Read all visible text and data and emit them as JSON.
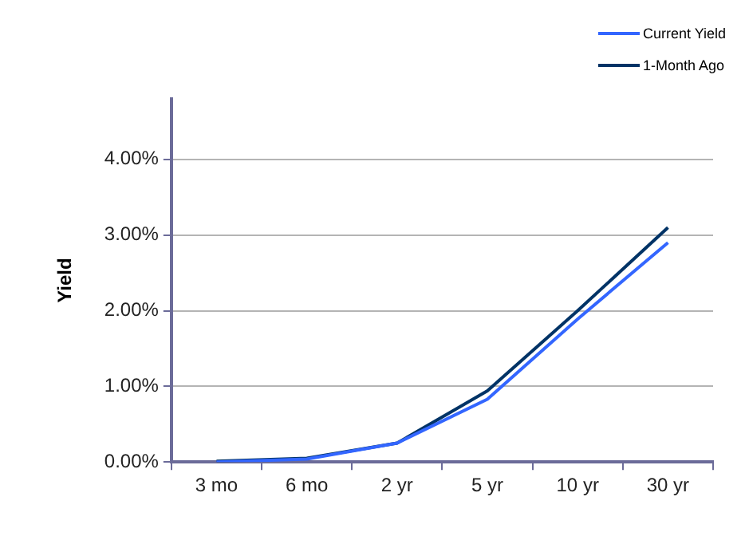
{
  "chart_data": {
    "type": "line",
    "ylabel": "Yield",
    "categories": [
      "3 mo",
      "6 mo",
      "2 yr",
      "5 yr",
      "10 yr",
      "30 yr"
    ],
    "series": [
      {
        "name": "Current Yield",
        "color": "#3366ff",
        "values": [
          0.0,
          0.04,
          0.25,
          0.83,
          1.89,
          2.9
        ]
      },
      {
        "name": "1-Month Ago",
        "color": "#003366",
        "values": [
          0.01,
          0.05,
          0.25,
          0.94,
          2.0,
          3.1
        ]
      }
    ],
    "ylim": [
      0,
      4.8
    ],
    "yticks": [
      {
        "value": 0,
        "label": "0.00%"
      },
      {
        "value": 1,
        "label": "1.00%"
      },
      {
        "value": 2,
        "label": "2.00%"
      },
      {
        "value": 3,
        "label": "3.00%"
      },
      {
        "value": 4,
        "label": "4.00%"
      }
    ],
    "grid": "y",
    "legend": "top right",
    "marker": "none",
    "line_style": "solid"
  }
}
